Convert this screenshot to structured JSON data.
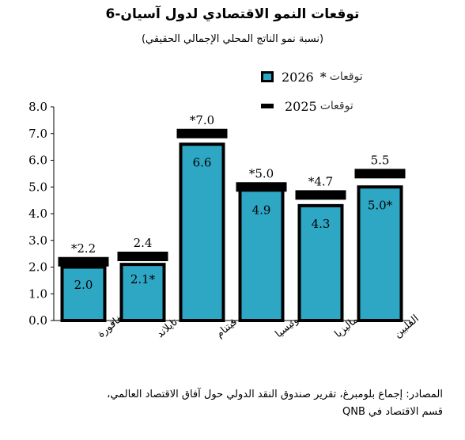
{
  "title": "توقعات النمو الاقتصادي لدول آسيان-6",
  "subtitle": "(نسبة نمو الناتج المحلي الإجمالي الحقيقي)",
  "legend": [
    {
      "year": "2026",
      "star": "*",
      "label": "توقعات",
      "marker": "bar"
    },
    {
      "year": "2025",
      "star": "",
      "label": "توقعات",
      "marker": "dash"
    }
  ],
  "colors": {
    "bar_fill": "#2ea7c4",
    "bar_border": "#000000",
    "marker": "#000000"
  },
  "footer": {
    "line1": "المصادر: إجماع بلومبرغ، تقرير صندوق النقد الدولي حول آفاق الاقتصاد العالمي،",
    "line2": "قسم الاقتصاد في QNB"
  },
  "chart_data": {
    "type": "bar",
    "ylim": [
      0,
      8
    ],
    "yticks": [
      "0.0",
      "1.0",
      "2.0",
      "3.0",
      "4.0",
      "5.0",
      "6.0",
      "7.0",
      "8.0"
    ],
    "grid": false,
    "categories": [
      "سنغافورة",
      "تايلاند",
      "فيتنام",
      "إندونيسيا",
      "ماليزيا",
      "الفلبين"
    ],
    "series": [
      {
        "name": "توقعات 2026 *",
        "type": "bar",
        "values": [
          2.0,
          2.1,
          6.6,
          4.9,
          4.3,
          5.0
        ],
        "labels": [
          "2.0",
          "2.1*",
          "6.6",
          "4.9",
          "4.3",
          "5.0*"
        ]
      },
      {
        "name": "توقعات 2025",
        "type": "marker",
        "values": [
          2.2,
          2.4,
          7.0,
          5.0,
          4.7,
          5.5
        ],
        "labels": [
          "*2.2",
          "2.4",
          "*7.0",
          "*5.0",
          "*4.7",
          "5.5"
        ]
      }
    ]
  }
}
